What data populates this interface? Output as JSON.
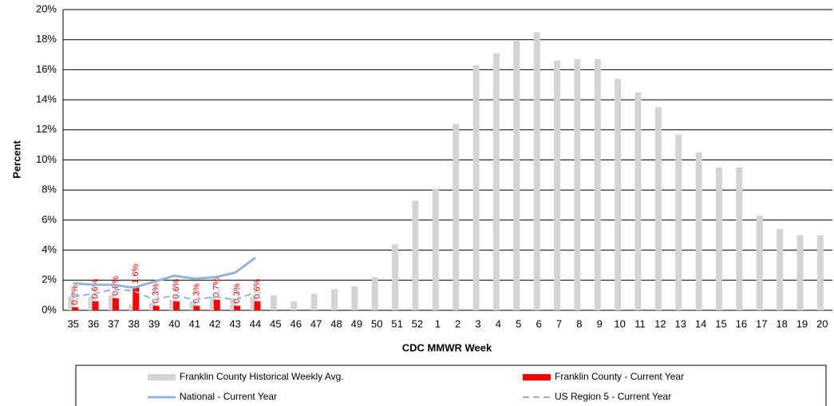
{
  "chart_data": {
    "type": "bar-line",
    "x_label": "CDC MMWR Week",
    "y_label": "Percent",
    "categories": [
      "35",
      "36",
      "37",
      "38",
      "39",
      "40",
      "41",
      "42",
      "43",
      "44",
      "45",
      "46",
      "47",
      "48",
      "49",
      "50",
      "51",
      "52",
      "1",
      "2",
      "3",
      "4",
      "5",
      "6",
      "7",
      "8",
      "9",
      "10",
      "11",
      "12",
      "13",
      "14",
      "15",
      "16",
      "17",
      "18",
      "19",
      "20"
    ],
    "ylim": [
      0,
      20
    ],
    "yticks": [
      {
        "value": 0,
        "label": "0%"
      },
      {
        "value": 2,
        "label": "2%"
      },
      {
        "value": 4,
        "label": "4%"
      },
      {
        "value": 6,
        "label": "6%"
      },
      {
        "value": 8,
        "label": "8%"
      },
      {
        "value": 10,
        "label": "10%"
      },
      {
        "value": 12,
        "label": "12%"
      },
      {
        "value": 14,
        "label": "14%"
      },
      {
        "value": 16,
        "label": "16%"
      },
      {
        "value": 18,
        "label": "18%"
      },
      {
        "value": 20,
        "label": "20%"
      }
    ],
    "grid": true,
    "legend": "bottom",
    "series": [
      {
        "name": "Franklin County Historical Weekly Avg.",
        "kind": "bar",
        "color": "#d4d4d4",
        "values": [
          0.9,
          0.9,
          1.0,
          0.4,
          0.5,
          0.7,
          0.6,
          0.9,
          0.8,
          0.9,
          1.0,
          0.6,
          1.1,
          1.4,
          1.6,
          2.2,
          4.4,
          7.3,
          8.1,
          12.4,
          16.3,
          17.1,
          17.9,
          18.5,
          16.6,
          16.7,
          16.7,
          15.4,
          14.5,
          13.5,
          11.7,
          10.5,
          9.5,
          9.5,
          6.3,
          5.4,
          5.0,
          5.0
        ]
      },
      {
        "name": "Franklin County - Current Year",
        "kind": "bar",
        "color": "#ff0000",
        "values": [
          0.2,
          0.6,
          0.8,
          1.6,
          0.3,
          0.6,
          0.3,
          0.7,
          0.3,
          0.6,
          null,
          null,
          null,
          null,
          null,
          null,
          null,
          null,
          null,
          null,
          null,
          null,
          null,
          null,
          null,
          null,
          null,
          null,
          null,
          null,
          null,
          null,
          null,
          null,
          null,
          null,
          null,
          null
        ],
        "value_labels": [
          "0.2%",
          "0.6%",
          "0.8%",
          "1.6%",
          "0.3%",
          "0.6%",
          "0.3%",
          "0.7%",
          "0.3%",
          "0.6%",
          null,
          null,
          null,
          null,
          null,
          null,
          null,
          null,
          null,
          null,
          null,
          null,
          null,
          null,
          null,
          null,
          null,
          null,
          null,
          null,
          null,
          null,
          null,
          null,
          null,
          null,
          null,
          null
        ]
      },
      {
        "name": "National - Current Year",
        "kind": "line",
        "color": "#95b3d7",
        "values": [
          1.8,
          1.7,
          1.7,
          1.5,
          1.9,
          2.3,
          2.1,
          2.2,
          2.5,
          3.5,
          null,
          null,
          null,
          null,
          null,
          null,
          null,
          null,
          null,
          null,
          null,
          null,
          null,
          null,
          null,
          null,
          null,
          null,
          null,
          null,
          null,
          null,
          null,
          null,
          null,
          null,
          null,
          null
        ]
      },
      {
        "name": "US Region 5 - Current Year",
        "kind": "dashed-line",
        "color": "#95b3d7",
        "values": [
          0.9,
          1.1,
          1.4,
          1.3,
          0.7,
          1.0,
          0.7,
          0.9,
          0.7,
          1.2,
          null,
          null,
          null,
          null,
          null,
          null,
          null,
          null,
          null,
          null,
          null,
          null,
          null,
          null,
          null,
          null,
          null,
          null,
          null,
          null,
          null,
          null,
          null,
          null,
          null,
          null,
          null,
          null
        ]
      }
    ]
  }
}
